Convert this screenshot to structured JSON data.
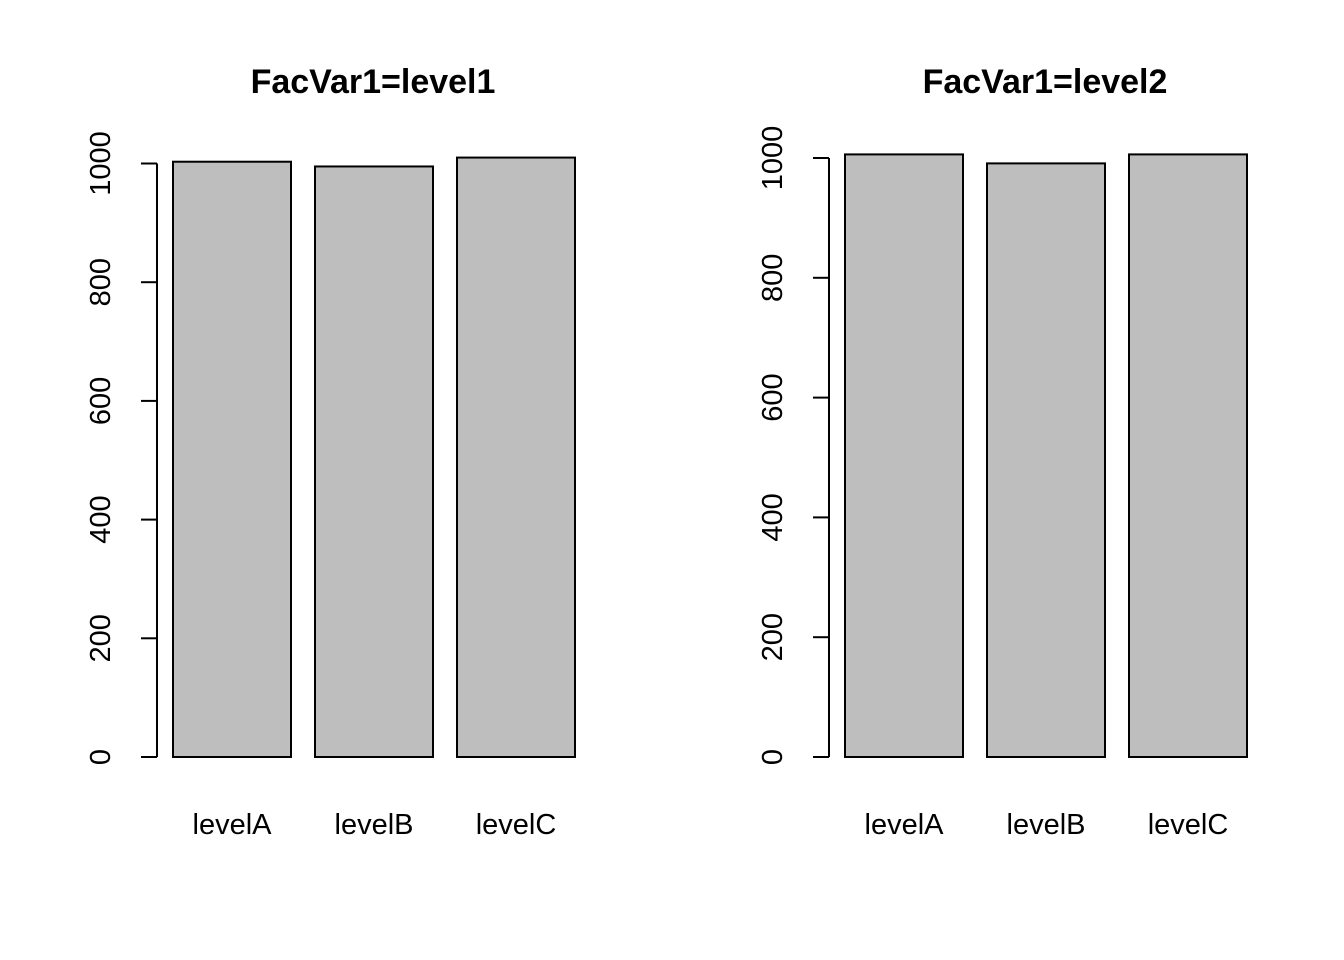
{
  "chart_data": [
    {
      "type": "bar",
      "title": "FacVar1=level1",
      "xlabel": "",
      "ylabel": "",
      "categories": [
        "levelA",
        "levelB",
        "levelC"
      ],
      "values": [
        1003,
        995,
        1010
      ],
      "ylim": [
        0,
        1000
      ],
      "yticks": [
        0,
        200,
        400,
        600,
        800,
        1000
      ],
      "grid": false,
      "bar_color": "#bebebe"
    },
    {
      "type": "bar",
      "title": "FacVar1=level2",
      "xlabel": "",
      "ylabel": "",
      "categories": [
        "levelA",
        "levelB",
        "levelC"
      ],
      "values": [
        1006,
        991,
        1006
      ],
      "ylim": [
        0,
        1000
      ],
      "yticks": [
        0,
        200,
        400,
        600,
        800,
        1000
      ],
      "grid": false,
      "bar_color": "#bebebe"
    }
  ]
}
